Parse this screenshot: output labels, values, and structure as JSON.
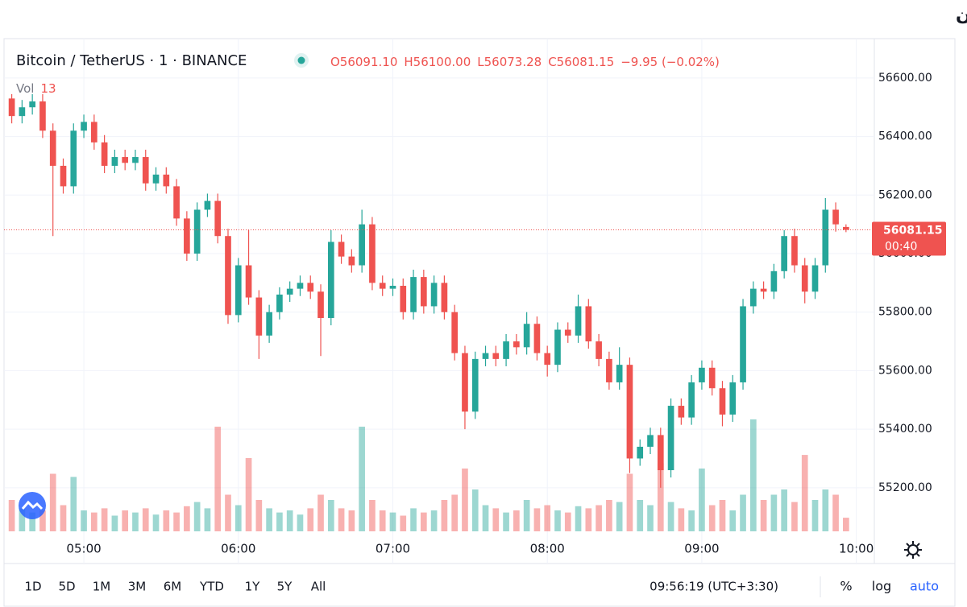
{
  "title": "نمودار تحلیل تکنیکال بیت کوین",
  "chart_data": {
    "type": "candlestick",
    "symbol": "Bitcoin / TetherUS · 1 · BINANCE",
    "legend_labels": [
      "O56091.10",
      "H56100.00",
      "L56073.28",
      "C56081.15",
      "−9.95 (−0.02%)"
    ],
    "volume_label": "Vol",
    "countdown": "00:40",
    "up_color": "#26a69a",
    "down_color": "#ef5350",
    "grid": true,
    "xlim": [
      269,
      607
    ],
    "xticks": [
      {
        "value": 300,
        "label": "05:00"
      },
      {
        "value": 360,
        "label": "06:00"
      },
      {
        "value": 420,
        "label": "07:00"
      },
      {
        "value": 480,
        "label": "08:00"
      },
      {
        "value": 540,
        "label": "09:00"
      },
      {
        "value": 600,
        "label": "10:00"
      }
    ],
    "ylim": [
      55051,
      56729
    ],
    "yticks": [
      {
        "value": 55200,
        "label": "55200.00"
      },
      {
        "value": 55400,
        "label": "55400.00"
      },
      {
        "value": 55600,
        "label": "55600.00"
      },
      {
        "value": 55800,
        "label": "55800.00"
      },
      {
        "value": 56000,
        "label": "56000.00"
      },
      {
        "value": 56200,
        "label": "56200.00"
      },
      {
        "value": 56400,
        "label": "56400.00"
      },
      {
        "value": 56600,
        "label": "56600.00"
      }
    ],
    "vol_lim": [
      0,
      120
    ],
    "x": [
      272,
      276,
      280,
      284,
      288,
      292,
      296,
      300,
      304,
      308,
      312,
      316,
      320,
      324,
      328,
      332,
      336,
      340,
      344,
      348,
      352,
      356,
      360,
      364,
      368,
      372,
      376,
      380,
      384,
      388,
      392,
      396,
      400,
      404,
      408,
      412,
      416,
      420,
      424,
      428,
      432,
      436,
      440,
      444,
      448,
      452,
      456,
      460,
      464,
      468,
      472,
      476,
      480,
      484,
      488,
      492,
      496,
      500,
      504,
      508,
      512,
      516,
      520,
      524,
      528,
      532,
      536,
      540,
      544,
      548,
      552,
      556,
      560,
      564,
      568,
      572,
      576,
      580,
      584,
      588,
      592,
      596
    ],
    "open": [
      56530,
      56470,
      56500,
      56520,
      56420,
      56300,
      56230,
      56420,
      56450,
      56380,
      56300,
      56330,
      56310,
      56330,
      56240,
      56270,
      56230,
      56120,
      56000,
      56150,
      56180,
      56060,
      55790,
      55960,
      55850,
      55720,
      55800,
      55860,
      55880,
      55900,
      55870,
      55780,
      56040,
      55990,
      55960,
      56100,
      55900,
      55880,
      55890,
      55800,
      55920,
      55820,
      55900,
      55800,
      55660,
      55460,
      55640,
      55660,
      55640,
      55700,
      55680,
      55760,
      55660,
      55620,
      55740,
      55720,
      55820,
      55700,
      55640,
      55560,
      55620,
      55300,
      55340,
      55380,
      55260,
      55480,
      55440,
      55560,
      55610,
      55540,
      55450,
      55560,
      55820,
      55880,
      55870,
      55940,
      56060,
      55960,
      55870,
      55960,
      56150,
      56091.1
    ],
    "high": [
      56545,
      56525,
      56545,
      56545,
      56445,
      56325,
      56445,
      56475,
      56475,
      56405,
      56355,
      56355,
      56355,
      56355,
      56295,
      56295,
      56255,
      56145,
      56175,
      56205,
      56205,
      56085,
      55985,
      56080,
      55875,
      55825,
      55885,
      55905,
      55925,
      55925,
      55895,
      56080,
      56065,
      56015,
      56150,
      56125,
      55925,
      55915,
      55915,
      55945,
      55945,
      55925,
      55925,
      55825,
      55685,
      55665,
      55685,
      55685,
      55725,
      55725,
      55800,
      55785,
      55685,
      55765,
      55765,
      55860,
      55845,
      55725,
      55665,
      55680,
      55645,
      55365,
      55405,
      55405,
      55505,
      55505,
      55585,
      55635,
      55635,
      55565,
      55585,
      55845,
      55905,
      55905,
      55965,
      56080,
      56085,
      55985,
      55985,
      56190,
      56175,
      56100
    ],
    "low": [
      56445,
      56445,
      56475,
      56395,
      56060,
      56205,
      56205,
      56395,
      56355,
      56275,
      56275,
      56285,
      56285,
      56215,
      56215,
      56205,
      56095,
      55975,
      55975,
      56125,
      56035,
      55760,
      55765,
      55825,
      55640,
      55695,
      55775,
      55835,
      55855,
      55845,
      55650,
      55755,
      55965,
      55935,
      55935,
      55875,
      55855,
      55855,
      55775,
      55775,
      55795,
      55795,
      55775,
      55635,
      55400,
      55435,
      55615,
      55615,
      55615,
      55655,
      55655,
      55635,
      55580,
      55595,
      55695,
      55695,
      55675,
      55615,
      55535,
      55535,
      55250,
      55275,
      55315,
      55200,
      55235,
      55415,
      55415,
      55535,
      55515,
      55410,
      55425,
      55535,
      55795,
      55845,
      55845,
      55915,
      55935,
      55830,
      55845,
      55935,
      56075,
      56073.28
    ],
    "close": [
      56470,
      56500,
      56520,
      56420,
      56300,
      56230,
      56420,
      56450,
      56380,
      56300,
      56330,
      56310,
      56330,
      56240,
      56270,
      56230,
      56120,
      56000,
      56150,
      56180,
      56060,
      55790,
      55960,
      55850,
      55720,
      55800,
      55860,
      55880,
      55900,
      55870,
      55780,
      56040,
      55990,
      55960,
      56100,
      55900,
      55880,
      55890,
      55800,
      55920,
      55820,
      55900,
      55800,
      55660,
      55460,
      55640,
      55660,
      55640,
      55700,
      55680,
      55760,
      55660,
      55620,
      55740,
      55720,
      55820,
      55700,
      55640,
      55560,
      55620,
      55300,
      55340,
      55380,
      55260,
      55480,
      55440,
      55560,
      55610,
      55540,
      55450,
      55560,
      55820,
      55880,
      55870,
      55940,
      56060,
      55960,
      55870,
      55960,
      56150,
      56100,
      56081.15
    ],
    "volume": [
      30,
      22,
      18,
      20,
      55,
      25,
      52,
      20,
      18,
      22,
      15,
      20,
      18,
      22,
      16,
      20,
      18,
      24,
      28,
      22,
      100,
      35,
      25,
      70,
      30,
      22,
      18,
      20,
      16,
      22,
      35,
      30,
      22,
      20,
      100,
      30,
      20,
      18,
      15,
      22,
      18,
      20,
      30,
      35,
      60,
      40,
      25,
      22,
      18,
      20,
      30,
      22,
      25,
      20,
      18,
      24,
      22,
      25,
      30,
      28,
      55,
      30,
      25,
      65,
      28,
      22,
      20,
      60,
      25,
      30,
      20,
      35,
      107,
      30,
      35,
      40,
      28,
      73,
      30,
      40,
      35,
      13
    ]
  },
  "toolbar": {
    "ranges": [
      "1D",
      "5D",
      "1M",
      "3M",
      "6M",
      "YTD",
      "1Y",
      "5Y",
      "All"
    ],
    "clock": "09:56:19 (UTC+3:30)",
    "options": [
      "%",
      "log",
      "auto"
    ]
  }
}
